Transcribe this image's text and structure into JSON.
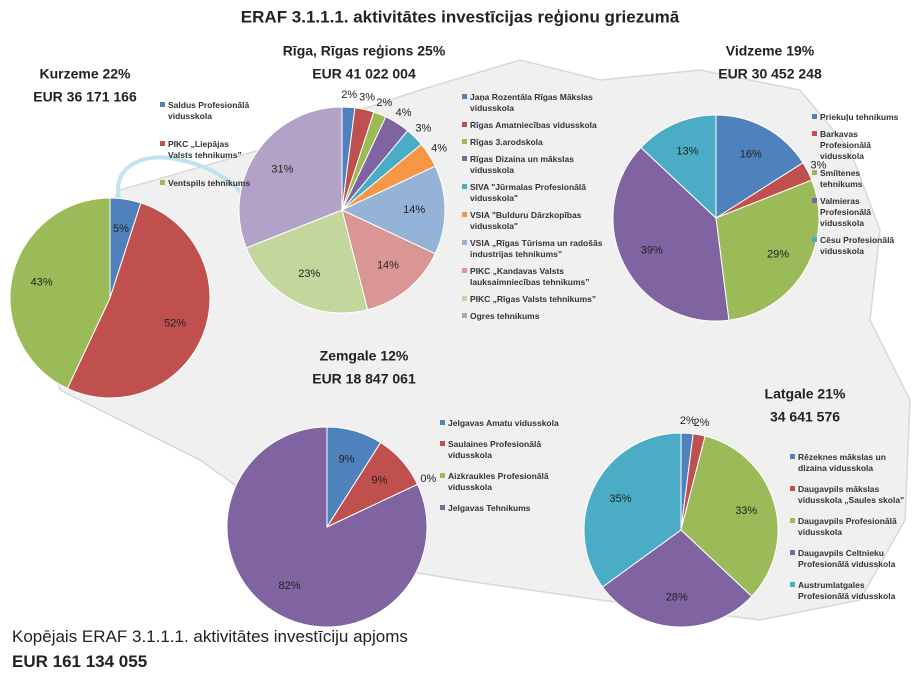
{
  "title": "ERAF 3.1.1.1. aktivitātes investīcijas reģionu griezumā",
  "footer": {
    "line1": "Kopējais  ERAF 3.1.1.1. aktivitātes investīciju apjoms",
    "line2": "EUR 161 134 055"
  },
  "chart_data": [
    {
      "type": "pie",
      "title": "Kurzeme 22%",
      "subtitle": "EUR 36 171 166",
      "categories": [
        "Saldus Profesionālā vidusskola",
        "PIKC „Liepājas Valsts tehnikums”",
        "Ventspils tehnikums"
      ],
      "values": [
        5,
        52,
        43
      ],
      "value_labels": [
        "5%",
        "52%",
        "43%"
      ],
      "colors": [
        "#4f81bd",
        "#c0504d",
        "#9bbb59"
      ]
    },
    {
      "type": "pie",
      "title": "Rīga, Rīgas reģions 25%",
      "subtitle": "EUR 41 022 004",
      "categories": [
        "Jaņa Rozentāla Rīgas Mākslas vidusskola",
        "Rīgas Amatniecības vidusskola",
        "Rīgas 3.arodskola",
        "Rīgas Dizaina un mākslas vidusskola",
        "SIVA \"Jūrmalas Profesionālā vidusskola\"",
        "VSIA \"Bulduru Dārzkopības vidusskola\"",
        "VSIA „Rīgas Tūrisma un radošās industrijas tehnikums”",
        "PIKC „Kandavas Valsts lauksaimniecības tehnikums”",
        "PIKC „Rīgas Valsts tehnikums”",
        "Ogres tehnikums"
      ],
      "values": [
        2,
        3,
        2,
        4,
        3,
        4,
        14,
        14,
        23,
        31
      ],
      "value_labels": [
        "2%",
        "3%",
        "2%",
        "4%",
        "3%",
        "4%",
        "14%",
        "14%",
        "23%",
        "31%"
      ],
      "colors": [
        "#4f81bd",
        "#c0504d",
        "#9bbb59",
        "#8064a2",
        "#4bacc6",
        "#f79646",
        "#95b3d7",
        "#d99694",
        "#c3d69b",
        "#b3a2c7"
      ]
    },
    {
      "type": "pie",
      "title": "Vidzeme 19%",
      "subtitle": "EUR 30 452 248",
      "categories": [
        "Priekuļu tehnikums",
        "Barkavas Profesionālā vidusskola",
        "Smiltenes tehnikums",
        "Valmieras Profesionālā vidusskola",
        "Cēsu Profesionālā vidusskola"
      ],
      "values": [
        16,
        3,
        29,
        39,
        13
      ],
      "value_labels": [
        "16%",
        "3%",
        "29%",
        "39%",
        "13%"
      ],
      "colors": [
        "#4f81bd",
        "#c0504d",
        "#9bbb59",
        "#8064a2",
        "#4bacc6"
      ]
    },
    {
      "type": "pie",
      "title": "Zemgale 12%",
      "subtitle": "EUR 18 847 061",
      "categories": [
        "Jelgavas Amatu vidusskola",
        "Saulaines Profesionālā vidusskola",
        "Aizkraukles Profesionālā vidusskola",
        "Jelgavas Tehnikums"
      ],
      "values": [
        9,
        9,
        0,
        82
      ],
      "value_labels": [
        "9%",
        "9%",
        "0%",
        "82%"
      ],
      "colors": [
        "#4f81bd",
        "#c0504d",
        "#9bbb59",
        "#8064a2"
      ]
    },
    {
      "type": "pie",
      "title": "Latgale 21%",
      "subtitle": "34 641 576",
      "categories": [
        "Rēzeknes mākslas un dizaina vidusskola",
        "Daugavpils mākslas vidusskola „Saules skola”",
        "Daugavpils Profesionālā vidusskola",
        "Daugavpils Celtnieku Profesionālā vidusskola",
        "Austrumlatgales Profesionālā vidusskola"
      ],
      "values": [
        2,
        2,
        33,
        28,
        35
      ],
      "value_labels": [
        "2%",
        "2%",
        "33%",
        "28%",
        "35%"
      ],
      "colors": [
        "#4f81bd",
        "#c0504d",
        "#9bbb59",
        "#8064a2",
        "#4bacc6"
      ]
    }
  ]
}
